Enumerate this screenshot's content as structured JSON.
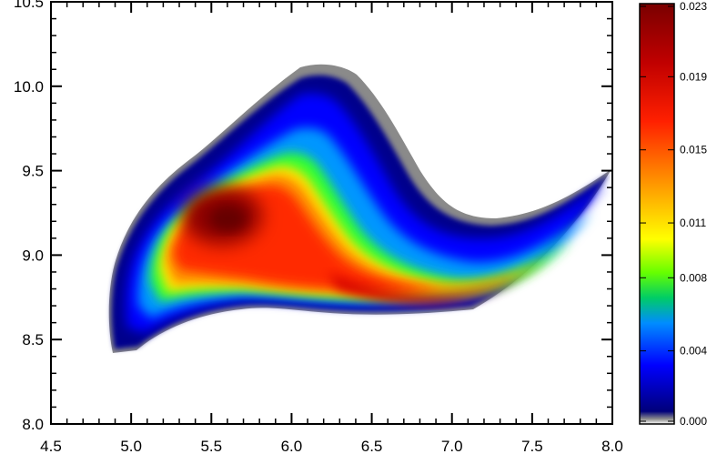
{
  "chart_data": {
    "type": "heatmap",
    "title": "",
    "xlabel": "",
    "ylabel": "",
    "xlim": [
      4.5,
      8.0
    ],
    "ylim": [
      8.0,
      10.5
    ],
    "x_ticks": [
      "4.5",
      "5.0",
      "5.5",
      "6.0",
      "6.5",
      "7.0",
      "7.5",
      "8.0"
    ],
    "y_ticks": [
      "8.0",
      "8.5",
      "9.0",
      "9.5",
      "10.0",
      "10.5"
    ],
    "colorbar": {
      "range": [
        0.0,
        0.023
      ],
      "tick_labels": [
        "0.023",
        "0.019",
        "0.015",
        "0.011",
        "0.008",
        "0.004",
        "0.000"
      ],
      "tick_values": [
        0.023,
        0.019,
        0.015,
        0.011,
        0.008,
        0.004,
        0.0
      ],
      "colormap": [
        "#ffffff",
        "#8c8c8c",
        "#00007a",
        "#0000ff",
        "#008cff",
        "#00cc66",
        "#66ff00",
        "#ffff00",
        "#ffa000",
        "#ff2000",
        "#c00000",
        "#7a0000"
      ]
    },
    "density_outline": [
      [
        4.9,
        8.42
      ],
      [
        5.0,
        8.5
      ],
      [
        5.2,
        8.62
      ],
      [
        5.6,
        8.68
      ],
      [
        6.0,
        8.78
      ],
      [
        6.5,
        8.74
      ],
      [
        7.0,
        8.78
      ],
      [
        7.5,
        9.05
      ],
      [
        8.0,
        9.5
      ],
      [
        7.6,
        9.22
      ],
      [
        7.2,
        9.2
      ],
      [
        6.8,
        9.55
      ],
      [
        6.4,
        10.0
      ],
      [
        6.2,
        10.12
      ],
      [
        6.0,
        10.08
      ],
      [
        5.5,
        9.8
      ],
      [
        5.0,
        9.25
      ],
      [
        4.9,
        8.42
      ]
    ],
    "peak": {
      "x": 5.5,
      "y": 9.25,
      "value": 0.023
    },
    "ridge": [
      [
        5.1,
        9.0
      ],
      [
        5.5,
        9.1
      ],
      [
        6.0,
        8.95
      ],
      [
        6.5,
        8.78
      ],
      [
        6.8,
        8.75
      ],
      [
        7.2,
        8.85
      ],
      [
        7.6,
        9.1
      ],
      [
        8.0,
        9.5
      ]
    ]
  }
}
